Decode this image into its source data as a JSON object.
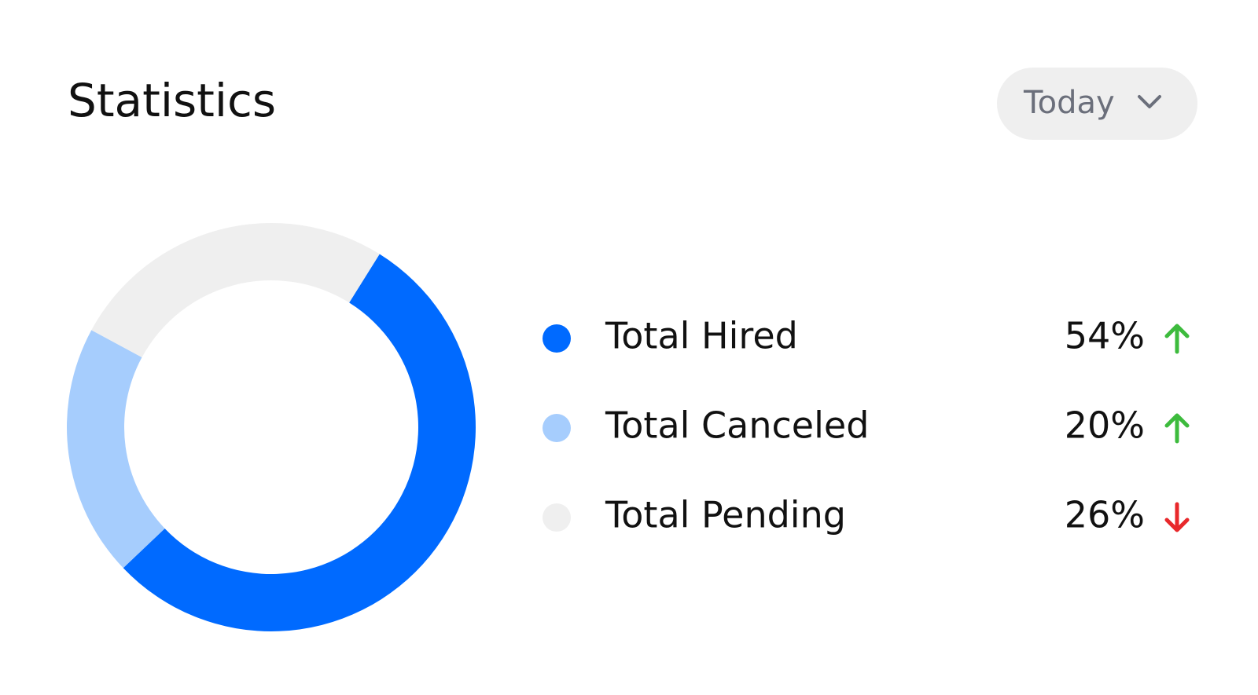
{
  "chart_data": {
    "type": "donut",
    "title": "Statistics",
    "period": "Today",
    "categories": [
      "Total Hired",
      "Total Canceled",
      "Total Pending"
    ],
    "values": [
      54,
      20,
      26
    ],
    "value_labels": [
      "54%",
      "20%",
      "26%"
    ],
    "colors": [
      "#006aff",
      "#a6cdfd",
      "#efefef"
    ],
    "trends": [
      "up",
      "up",
      "down"
    ]
  }
}
